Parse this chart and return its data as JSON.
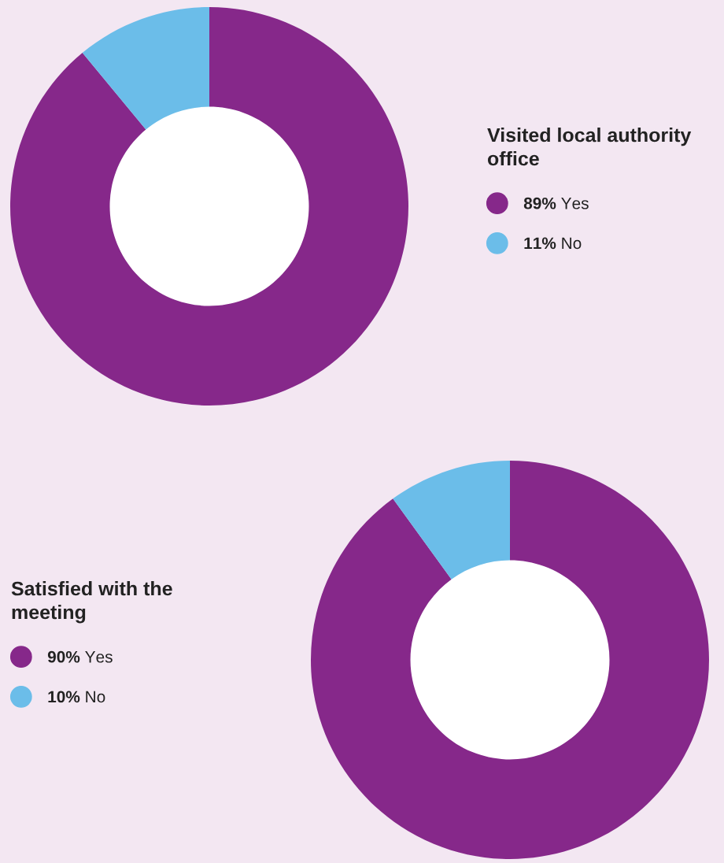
{
  "chart_data": [
    {
      "type": "donut",
      "title": "Visited local authority office",
      "categories": [
        "Yes",
        "No"
      ],
      "values": [
        89,
        11
      ],
      "value_labels": [
        "89%",
        "11%"
      ],
      "colors": [
        "#86288a",
        "#6bbde9"
      ],
      "legend": "right"
    },
    {
      "type": "donut",
      "title": "Satisfied with the meeting",
      "categories": [
        "Yes",
        "No"
      ],
      "values": [
        90,
        10
      ],
      "value_labels": [
        "90%",
        "10%"
      ],
      "colors": [
        "#86288a",
        "#6bbde9"
      ],
      "legend": "left"
    }
  ]
}
